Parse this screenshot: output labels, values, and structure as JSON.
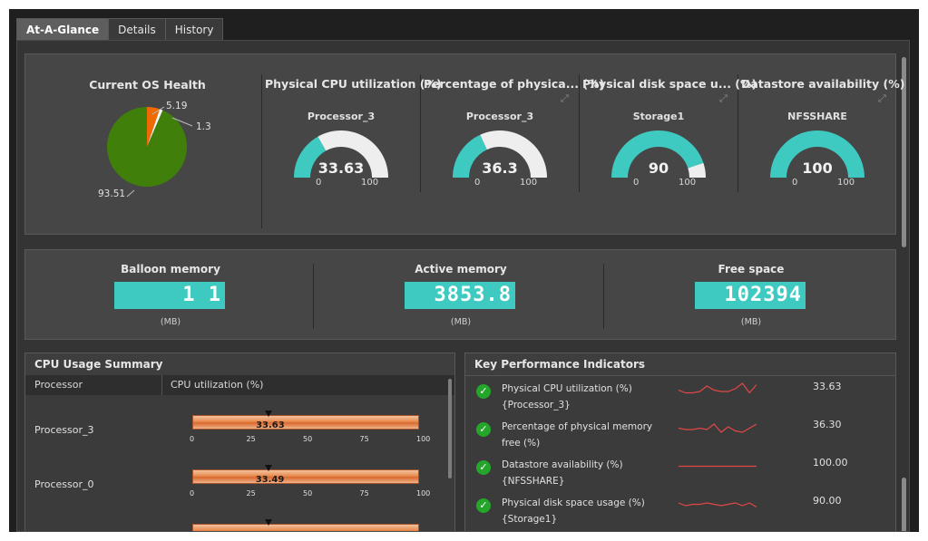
{
  "tabs": [
    "At-A-Glance",
    "Details",
    "History"
  ],
  "health": {
    "title": "Current OS Health",
    "slices": [
      {
        "value": 93.51,
        "label": "93.51",
        "color": "#3f7f0a"
      },
      {
        "value": 5.19,
        "label": "5.19",
        "color": "#ef6a00"
      },
      {
        "value": 1.3,
        "label": "1.3",
        "color": "#f7f7f7"
      }
    ]
  },
  "gauges": [
    {
      "title": "Physical CPU utilization (%)",
      "sub": "Processor_3",
      "value": 33.63,
      "display": "33.63",
      "min": "0",
      "max": "100",
      "expand": false
    },
    {
      "title": "Percentage of physica... (%)",
      "sub": "Processor_3",
      "value": 36.3,
      "display": "36.3",
      "min": "0",
      "max": "100",
      "expand": true
    },
    {
      "title": "Physical disk space u... (%)",
      "sub": "Storage1",
      "value": 90,
      "display": "90",
      "min": "0",
      "max": "100",
      "expand": true
    },
    {
      "title": "Datastore availability (%)",
      "sub": "NFSSHARE",
      "value": 100,
      "display": "100",
      "min": "0",
      "max": "100",
      "expand": true
    }
  ],
  "memory": [
    {
      "title": "Balloon memory",
      "display": "1 1",
      "unit": "(MB)"
    },
    {
      "title": "Active memory",
      "display": "3853.8",
      "unit": "(MB)"
    },
    {
      "title": "Free space",
      "display": "102394",
      "unit": "(MB)"
    }
  ],
  "cpu_summary": {
    "title": "CPU Usage Summary",
    "col_processor": "Processor",
    "col_util": "CPU utilization (%)",
    "ticks": [
      "0",
      "25",
      "50",
      "75",
      "100"
    ],
    "rows": [
      {
        "name": "Processor_3",
        "value": 33.63,
        "display": "33.63"
      },
      {
        "name": "Processor_0",
        "value": 33.49,
        "display": "33.49"
      },
      {
        "name": "",
        "value": 33.5,
        "display": ""
      }
    ]
  },
  "kpi": {
    "title": "Key Performance Indicators",
    "rows": [
      {
        "line1": "Physical CPU utilization (%)",
        "line2": "{Processor_3}",
        "value": "33.63",
        "spark": [
          5,
          7,
          7,
          6,
          2,
          5,
          6,
          6,
          4,
          0,
          7,
          1
        ]
      },
      {
        "line1": "Percentage of physical memory",
        "line2": "free (%)",
        "value": "36.30",
        "spark": [
          5,
          6,
          6,
          5,
          6,
          2,
          8,
          4,
          7,
          8,
          5,
          2
        ]
      },
      {
        "line1": "Datastore availability (%)",
        "line2": "{NFSSHARE}",
        "value": "100.00",
        "spark": [
          5,
          5,
          5,
          5,
          5,
          5,
          5,
          5,
          5,
          5,
          5,
          5
        ]
      },
      {
        "line1": "Physical disk space usage (%)",
        "line2": "{Storage1}",
        "value": "90.00",
        "spark": [
          4,
          6,
          5,
          5,
          4,
          5,
          6,
          5,
          4,
          6,
          4,
          7
        ]
      }
    ]
  },
  "colors": {
    "teal": "#3ec9c1",
    "orange": "#e88a4f",
    "green": "#23a62a",
    "spark": "#e04848"
  }
}
